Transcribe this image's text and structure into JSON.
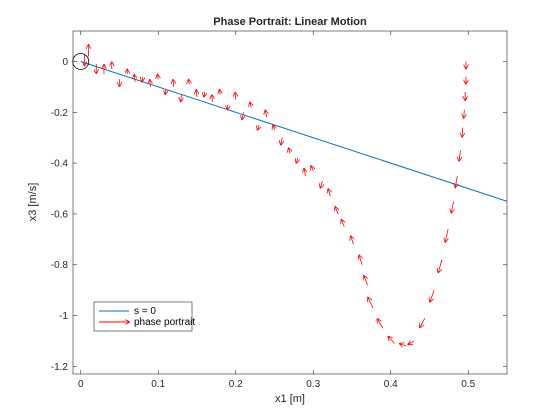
{
  "chart_data": {
    "type": "line",
    "title": "Phase Portrait: Linear Motion",
    "xlabel": "x1 [m]",
    "ylabel": "x3 [m/s]",
    "xlim": [
      -0.01,
      0.55
    ],
    "ylim": [
      -1.23,
      0.12
    ],
    "xticks": [
      0,
      0.1,
      0.2,
      0.3,
      0.4,
      0.5
    ],
    "yticks": [
      -1.2,
      -1,
      -0.8,
      -0.6,
      -0.4,
      -0.2,
      0
    ],
    "xtick_labels": [
      "0",
      "0.1",
      "0.2",
      "0.3",
      "0.4",
      "0.5"
    ],
    "ytick_labels": [
      "-1.2",
      "-1",
      "-0.8",
      "-0.6",
      "-0.4",
      "-0.2",
      "0"
    ],
    "grid": false,
    "legend_position": "bottom-left",
    "series": [
      {
        "name": "s = 0",
        "color": "#0072BD",
        "style": "line",
        "x": [
          0,
          0.55
        ],
        "y": [
          0,
          -0.55
        ]
      },
      {
        "name": "phase portrait",
        "color": "#FF0000",
        "style": "quiver",
        "x": [
          0.497,
          0.497,
          0.496,
          0.495,
          0.493,
          0.49,
          0.486,
          0.481,
          0.474,
          0.466,
          0.456,
          0.444,
          0.43,
          0.42,
          0.405,
          0.39,
          0.377,
          0.37,
          0.363,
          0.352,
          0.34,
          0.332,
          0.322,
          0.312,
          0.3,
          0.29,
          0.28,
          0.27,
          0.26,
          0.25,
          0.24,
          0.23,
          0.22,
          0.21,
          0.2,
          0.19,
          0.18,
          0.17,
          0.16,
          0.15,
          0.14,
          0.13,
          0.12,
          0.11,
          0.1,
          0.09,
          0.08,
          0.07,
          0.06,
          0.05,
          0.04,
          0.03,
          0.02,
          0.01,
          0.005
        ],
        "y": [
          0.0,
          -0.06,
          -0.12,
          -0.19,
          -0.26,
          -0.35,
          -0.45,
          -0.55,
          -0.66,
          -0.78,
          -0.9,
          -1.01,
          -1.1,
          -1.12,
          -1.11,
          -1.05,
          -0.97,
          -0.88,
          -0.8,
          -0.72,
          -0.65,
          -0.6,
          -0.53,
          -0.47,
          -0.43,
          -0.45,
          -0.38,
          -0.36,
          -0.3,
          -0.27,
          -0.22,
          -0.25,
          -0.18,
          -0.2,
          -0.15,
          -0.17,
          -0.13,
          -0.16,
          -0.12,
          -0.14,
          -0.09,
          -0.13,
          -0.1,
          -0.11,
          -0.07,
          -0.1,
          -0.06,
          -0.08,
          -0.05,
          -0.07,
          -0.03,
          -0.05,
          -0.01,
          0.02,
          0.03
        ],
        "u": [
          0.0,
          0.0,
          0.0,
          -0.001,
          -0.001,
          -0.002,
          -0.003,
          -0.003,
          -0.004,
          -0.005,
          -0.006,
          -0.007,
          -0.008,
          -0.009,
          -0.009,
          -0.008,
          -0.007,
          -0.005,
          -0.004,
          -0.004,
          -0.004,
          -0.004,
          -0.003,
          -0.003,
          -0.003,
          -0.002,
          -0.002,
          -0.002,
          -0.002,
          -0.002,
          -0.002,
          -0.002,
          -0.002,
          -0.002,
          -0.001,
          -0.001,
          -0.001,
          -0.001,
          -0.001,
          -0.001,
          -0.001,
          -0.001,
          -0.001,
          -0.001,
          -0.001,
          -0.001,
          -0.001,
          -0.001,
          0.0,
          0.0,
          0.0,
          0.0,
          0.0,
          0.0,
          0.0
        ],
        "v": [
          -0.03,
          -0.03,
          -0.035,
          -0.035,
          -0.04,
          -0.045,
          -0.05,
          -0.05,
          -0.055,
          -0.055,
          -0.05,
          -0.04,
          -0.015,
          0.01,
          0.03,
          0.04,
          0.045,
          0.04,
          0.04,
          0.035,
          0.03,
          0.03,
          0.03,
          -0.03,
          0.02,
          0.03,
          -0.02,
          0.02,
          -0.03,
          0.02,
          0.03,
          -0.02,
          0.02,
          -0.03,
          0.03,
          -0.02,
          0.02,
          0.03,
          -0.02,
          0.03,
          0.02,
          -0.03,
          0.03,
          -0.02,
          0.02,
          0.03,
          -0.02,
          0.03,
          0.02,
          -0.03,
          0.03,
          0.04,
          -0.04,
          0.05,
          -0.05
        ]
      }
    ]
  }
}
